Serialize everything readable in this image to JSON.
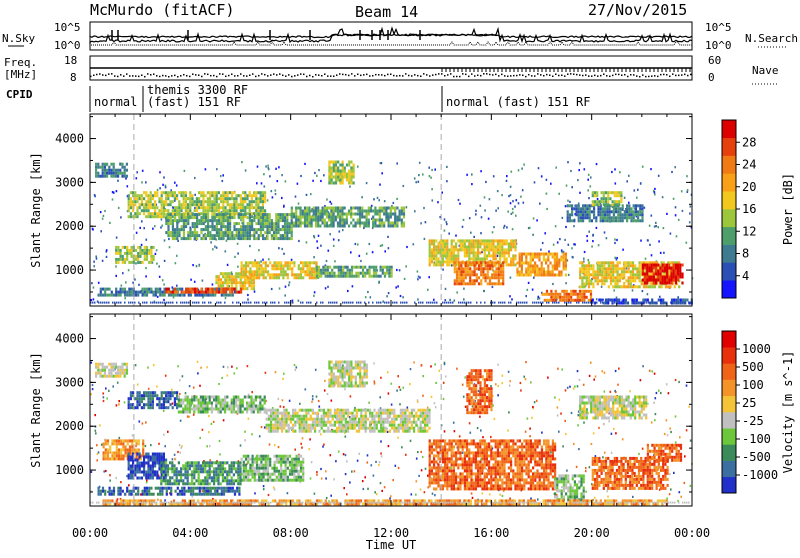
{
  "header": {
    "title": "McMurdo (fitACF)",
    "beam": "Beam 14",
    "date": "27/Nov/2015"
  },
  "nsky_panel": {
    "label": "N.Sky",
    "label_right": "N.Search",
    "ticks_left": [
      "10^5",
      "10^0"
    ],
    "ticks_right": [
      "10^5",
      "10^0"
    ]
  },
  "freq_panel": {
    "label": "Freq.",
    "unit": "[MHz]",
    "label_right": "Nave",
    "ticks_left": [
      "18",
      "8"
    ],
    "ticks_right": [
      "60",
      "0"
    ]
  },
  "cpid": {
    "label": "CPID",
    "segments": [
      {
        "start_h": 0.0,
        "text": "normal"
      },
      {
        "start_h": 1.75,
        "text": "themis 3300 RF",
        "text2": "(fast) 151 RF"
      },
      {
        "start_h": 14.0,
        "text": "normal (fast) 151 RF"
      }
    ]
  },
  "chart_data": [
    {
      "type": "heatmap",
      "name": "power",
      "ylabel": "Slant Range [km]",
      "xlabel": "",
      "xlim_hours": [
        0,
        24
      ],
      "ylim_km": [
        180,
        4560
      ],
      "yticks": [
        "1000",
        "2000",
        "3000",
        "4000"
      ],
      "colorbar": {
        "label": "Power [dB]",
        "ticks": [
          "4",
          "8",
          "12",
          "16",
          "20",
          "24",
          "28"
        ],
        "colors": [
          "#1414ff",
          "#2a4fb5",
          "#3e7a90",
          "#4d9e6a",
          "#9cc63c",
          "#f2c81e",
          "#f7a018",
          "#f07a14",
          "#e6400c",
          "#dc0000"
        ]
      },
      "bands": [
        {
          "t0": 0.2,
          "t1": 1.5,
          "r0": 3150,
          "r1": 3450,
          "level": 2
        },
        {
          "t0": 1.5,
          "t1": 7.0,
          "r0": 2250,
          "r1": 2800,
          "level": 4
        },
        {
          "t0": 1.0,
          "t1": 2.5,
          "r0": 1200,
          "r1": 1550,
          "level": 4
        },
        {
          "t0": 3.0,
          "t1": 8.0,
          "r0": 1700,
          "r1": 2300,
          "level": 3
        },
        {
          "t0": 5.0,
          "t1": 6.5,
          "r0": 600,
          "r1": 950,
          "level": 5
        },
        {
          "t0": 0.3,
          "t1": 6.0,
          "r0": 440,
          "r1": 600,
          "level": 2
        },
        {
          "t0": 3.0,
          "t1": 6.0,
          "r0": 470,
          "r1": 600,
          "level": 8
        },
        {
          "t0": 6.0,
          "t1": 9.0,
          "r0": 800,
          "r1": 1200,
          "level": 5
        },
        {
          "t0": 8.0,
          "t1": 12.5,
          "r0": 2000,
          "r1": 2450,
          "level": 3
        },
        {
          "t0": 9.5,
          "t1": 10.5,
          "r0": 3000,
          "r1": 3500,
          "level": 4
        },
        {
          "t0": 9.0,
          "t1": 12.0,
          "r0": 880,
          "r1": 1100,
          "level": 3
        },
        {
          "t0": 13.5,
          "t1": 17.0,
          "r0": 1100,
          "r1": 1700,
          "level": 5
        },
        {
          "t0": 14.5,
          "t1": 16.5,
          "r0": 700,
          "r1": 1200,
          "level": 7
        },
        {
          "t0": 17.0,
          "t1": 19.0,
          "r0": 900,
          "r1": 1400,
          "level": 6
        },
        {
          "t0": 19.0,
          "t1": 22.0,
          "r0": 2100,
          "r1": 2500,
          "level": 2
        },
        {
          "t0": 20.0,
          "t1": 21.2,
          "r0": 2500,
          "r1": 2800,
          "level": 4
        },
        {
          "t0": 19.5,
          "t1": 23.5,
          "r0": 650,
          "r1": 1200,
          "level": 5
        },
        {
          "t0": 22.0,
          "t1": 23.6,
          "r0": 700,
          "r1": 1150,
          "level": 9
        },
        {
          "t0": 18.0,
          "t1": 20.0,
          "r0": 300,
          "r1": 550,
          "level": 7
        },
        {
          "t0": 20.0,
          "t1": 24.0,
          "r0": 260,
          "r1": 350,
          "level": 1
        }
      ]
    },
    {
      "type": "heatmap",
      "name": "velocity",
      "ylabel": "Slant Range [km]",
      "xlabel": "Time UT",
      "xlim_hours": [
        0,
        24
      ],
      "ylim_km": [
        180,
        4560
      ],
      "yticks": [
        "1000",
        "2000",
        "3000",
        "4000"
      ],
      "xticks": [
        "00:00",
        "04:00",
        "08:00",
        "12:00",
        "16:00",
        "20:00",
        "00:00"
      ],
      "colorbar": {
        "label": "Velocity [m s^-1]",
        "ticks": [
          "1000",
          "500",
          "100",
          "25",
          "-25",
          "-100",
          "-500",
          "-1000"
        ],
        "colors": [
          "#2030c8",
          "#3a6fa0",
          "#3a8a5a",
          "#6cc83a",
          "#c0c0c0",
          "#f4c438",
          "#f49428",
          "#f06418",
          "#e8300c",
          "#e00000"
        ]
      },
      "bands": [
        {
          "t0": 0.2,
          "t1": 1.5,
          "r0": 3150,
          "r1": 3450,
          "level": 4
        },
        {
          "t0": 1.5,
          "t1": 3.5,
          "r0": 2400,
          "r1": 2800,
          "level": 1
        },
        {
          "t0": 3.5,
          "t1": 7.0,
          "r0": 2300,
          "r1": 2700,
          "level": 3
        },
        {
          "t0": 0.5,
          "t1": 2.2,
          "r0": 1250,
          "r1": 1700,
          "level": 6
        },
        {
          "t0": 1.5,
          "t1": 3.0,
          "r0": 800,
          "r1": 1400,
          "level": 0
        },
        {
          "t0": 2.8,
          "t1": 6.0,
          "r0": 700,
          "r1": 1200,
          "level": 2
        },
        {
          "t0": 0.3,
          "t1": 6.0,
          "r0": 440,
          "r1": 620,
          "level": 1
        },
        {
          "t0": 6.0,
          "t1": 8.5,
          "r0": 750,
          "r1": 1350,
          "level": 3
        },
        {
          "t0": 7.0,
          "t1": 13.5,
          "r0": 1900,
          "r1": 2400,
          "level": 4
        },
        {
          "t0": 9.5,
          "t1": 11.0,
          "r0": 2900,
          "r1": 3500,
          "level": 4
        },
        {
          "t0": 13.5,
          "t1": 18.5,
          "r0": 600,
          "r1": 1700,
          "level": 7
        },
        {
          "t0": 15.0,
          "t1": 16.0,
          "r0": 2300,
          "r1": 3300,
          "level": 7
        },
        {
          "t0": 18.5,
          "t1": 19.7,
          "r0": 300,
          "r1": 900,
          "level": 3
        },
        {
          "t0": 19.5,
          "t1": 22.2,
          "r0": 2200,
          "r1": 2700,
          "level": 4
        },
        {
          "t0": 20.0,
          "t1": 23.0,
          "r0": 600,
          "r1": 1300,
          "level": 7
        },
        {
          "t0": 22.2,
          "t1": 23.6,
          "r0": 1200,
          "r1": 1600,
          "level": 7
        },
        {
          "t0": 0.5,
          "t1": 23.0,
          "r0": 260,
          "r1": 330,
          "level": 6
        }
      ]
    }
  ]
}
